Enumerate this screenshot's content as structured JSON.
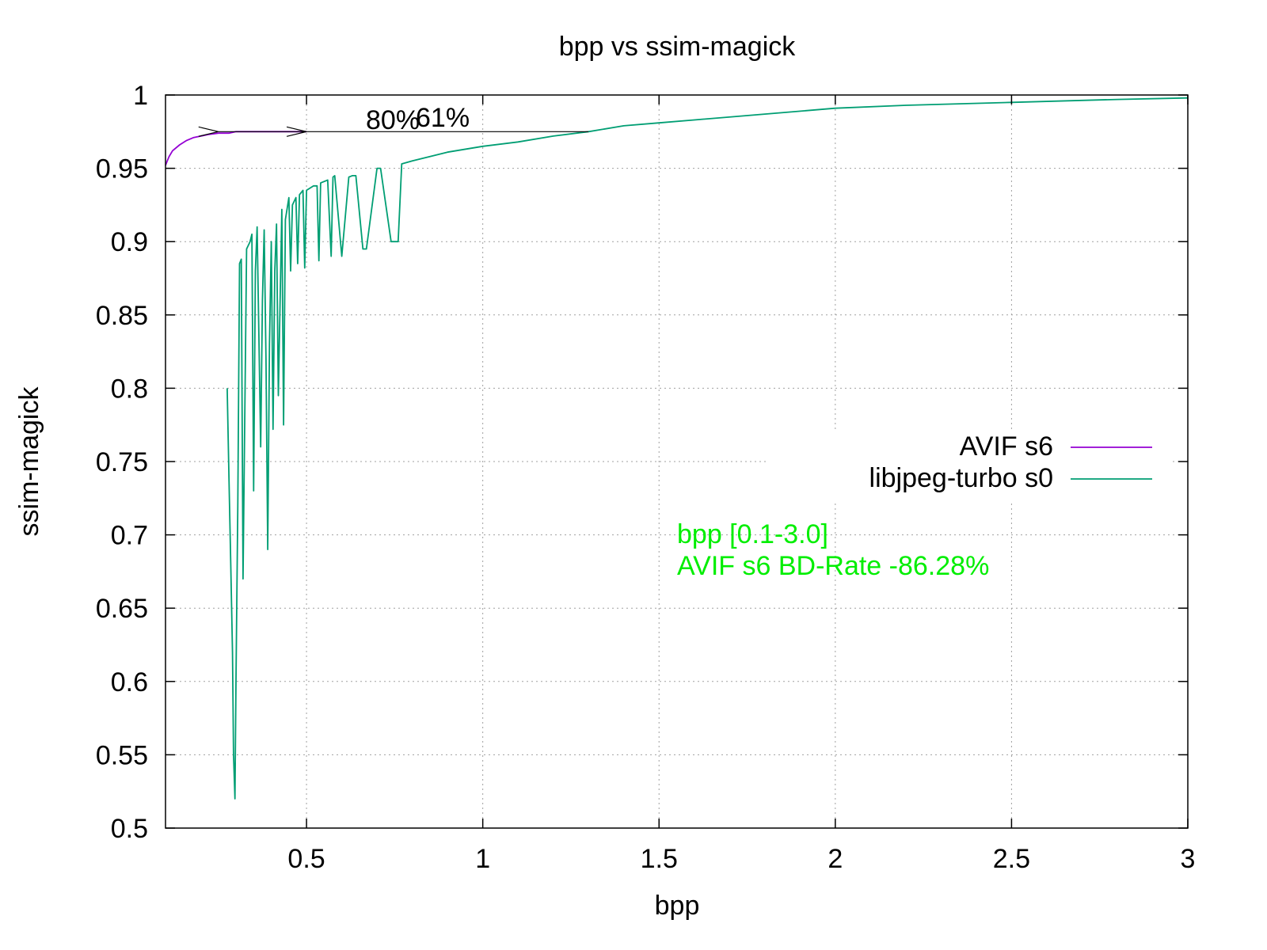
{
  "chart_data": {
    "type": "line",
    "title": "bpp vs ssim-magick",
    "xlabel": "bpp",
    "ylabel": "ssim-magick",
    "xlim": [
      0.1,
      3.0
    ],
    "ylim": [
      0.5,
      1.0
    ],
    "xticks": [
      0.5,
      1,
      1.5,
      2,
      2.5,
      3
    ],
    "yticks": [
      0.5,
      0.55,
      0.6,
      0.65,
      0.7,
      0.75,
      0.8,
      0.85,
      0.9,
      0.95,
      1
    ],
    "grid": true,
    "legend_position": "right",
    "series": [
      {
        "name": "AVIF s6",
        "color": "#9400d3",
        "x": [
          0.1,
          0.105,
          0.11,
          0.12,
          0.14,
          0.16,
          0.18,
          0.2,
          0.22,
          0.25,
          0.28,
          0.3,
          0.35,
          0.4,
          0.45,
          0.5
        ],
        "y": [
          0.952,
          0.955,
          0.958,
          0.962,
          0.966,
          0.969,
          0.971,
          0.972,
          0.973,
          0.974,
          0.974,
          0.975,
          0.975,
          0.975,
          0.975,
          0.975
        ]
      },
      {
        "name": "libjpeg-turbo s0",
        "color": "#009e73",
        "x": [
          0.275,
          0.28,
          0.285,
          0.29,
          0.293,
          0.297,
          0.3,
          0.305,
          0.31,
          0.315,
          0.32,
          0.33,
          0.34,
          0.345,
          0.35,
          0.355,
          0.36,
          0.37,
          0.375,
          0.38,
          0.385,
          0.39,
          0.395,
          0.4,
          0.405,
          0.41,
          0.415,
          0.42,
          0.43,
          0.435,
          0.44,
          0.45,
          0.455,
          0.46,
          0.47,
          0.475,
          0.48,
          0.49,
          0.495,
          0.5,
          0.52,
          0.53,
          0.535,
          0.54,
          0.56,
          0.57,
          0.575,
          0.58,
          0.6,
          0.62,
          0.63,
          0.64,
          0.66,
          0.67,
          0.7,
          0.71,
          0.74,
          0.76,
          0.77,
          0.8,
          0.85,
          0.9,
          1.0,
          1.1,
          1.2,
          1.3,
          1.4,
          1.5,
          1.6,
          1.8,
          2.0,
          2.2,
          2.5,
          2.8,
          3.0
        ],
        "y": [
          0.8,
          0.74,
          0.68,
          0.62,
          0.55,
          0.52,
          0.6,
          0.72,
          0.885,
          0.888,
          0.67,
          0.895,
          0.9,
          0.905,
          0.73,
          0.88,
          0.91,
          0.76,
          0.86,
          0.908,
          0.82,
          0.69,
          0.83,
          0.9,
          0.772,
          0.88,
          0.912,
          0.795,
          0.922,
          0.775,
          0.915,
          0.93,
          0.88,
          0.925,
          0.93,
          0.885,
          0.932,
          0.935,
          0.882,
          0.935,
          0.938,
          0.938,
          0.887,
          0.94,
          0.942,
          0.89,
          0.944,
          0.945,
          0.89,
          0.944,
          0.945,
          0.945,
          0.895,
          0.895,
          0.95,
          0.95,
          0.9,
          0.9,
          0.953,
          0.955,
          0.958,
          0.961,
          0.965,
          0.968,
          0.972,
          0.975,
          0.979,
          0.981,
          0.983,
          0.987,
          0.991,
          0.993,
          0.995,
          0.997,
          0.998
        ]
      }
    ],
    "annotations": {
      "pct_left": "80%",
      "pct_right": "61%",
      "bd_line1": "bpp [0.1-3.0]",
      "bd_line2": "AVIF s6 BD-Rate -86.28%",
      "bd_color": "#00ee00",
      "arrow_y": 0.975,
      "arrows": [
        {
          "from_x": 0.5,
          "to_x": 0.25
        },
        {
          "from_x": 1.3,
          "to_x": 0.5
        }
      ]
    }
  }
}
